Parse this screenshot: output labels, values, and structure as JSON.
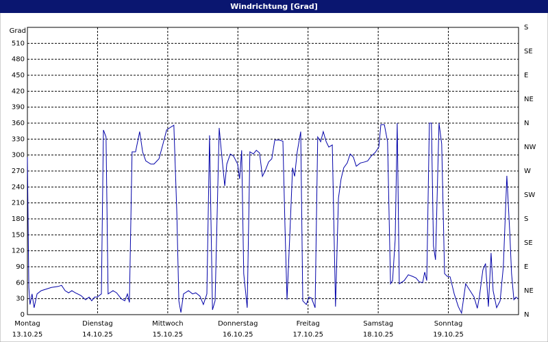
{
  "chart_data": {
    "type": "line",
    "title": "Windrichtung [Grad]",
    "y_label": "Grad",
    "color": "#0000a8",
    "grid": true,
    "xlim": [
      0,
      168
    ],
    "xticks": [
      {
        "value": 0,
        "label": "Montag",
        "date": "13.10.25"
      },
      {
        "value": 24,
        "label": "Dienstag",
        "date": "14.10.25"
      },
      {
        "value": 48,
        "label": "Mittwoch",
        "date": "15.10.25"
      },
      {
        "value": 72,
        "label": "Donnerstag",
        "date": "16.10.25"
      },
      {
        "value": 96,
        "label": "Freitag",
        "date": "17.10.25"
      },
      {
        "value": 120,
        "label": "Samstag",
        "date": "18.10.25"
      },
      {
        "value": 144,
        "label": "Sonntag",
        "date": "19.10.25"
      }
    ],
    "ylim": [
      0,
      540
    ],
    "yticks": [
      0,
      30,
      60,
      90,
      120,
      150,
      180,
      210,
      240,
      270,
      300,
      330,
      360,
      390,
      420,
      450,
      480,
      510
    ],
    "y2lim": [
      0,
      540
    ],
    "y2ticks": [
      {
        "value": 0,
        "label": "N"
      },
      {
        "value": 45,
        "label": "NE"
      },
      {
        "value": 90,
        "label": "E"
      },
      {
        "value": 135,
        "label": "SE"
      },
      {
        "value": 180,
        "label": "S"
      },
      {
        "value": 225,
        "label": "SW"
      },
      {
        "value": 270,
        "label": "W"
      },
      {
        "value": 315,
        "label": "NW"
      },
      {
        "value": 360,
        "label": "N"
      },
      {
        "value": 405,
        "label": "NE"
      },
      {
        "value": 450,
        "label": "E"
      },
      {
        "value": 495,
        "label": "SE"
      },
      {
        "value": 540,
        "label": "S"
      }
    ],
    "x": [
      0,
      0.5,
      0.9,
      1.6,
      2.3,
      3.3,
      4.7,
      7.0,
      8.2,
      10.5,
      11.7,
      12.9,
      14.1,
      15.2,
      16.4,
      18.3,
      19.9,
      21.1,
      22.0,
      23.0,
      23.9,
      24.6,
      25.3,
      26.0,
      26.9,
      27.6,
      29.3,
      30.5,
      32.1,
      33.3,
      34.2,
      34.9,
      35.8,
      37.0,
      38.4,
      39.4,
      40.5,
      42.2,
      43.3,
      45.0,
      46.4,
      47.6,
      49.2,
      50.1,
      51.1,
      51.8,
      52.5,
      53.4,
      55.1,
      56.5,
      57.6,
      59.0,
      60.2,
      61.4,
      62.3,
      63.3,
      64.2,
      65.6,
      66.3,
      67.5,
      68.2,
      69.4,
      70.5,
      71.9,
      72.6,
      73.3,
      74.0,
      75.2,
      76.1,
      77.3,
      78.3,
      79.4,
      80.4,
      81.3,
      82.5,
      83.6,
      84.6,
      86.2,
      87.4,
      88.1,
      88.8,
      89.7,
      90.7,
      91.4,
      92.3,
      93.5,
      94.2,
      95.4,
      96.3,
      97.2,
      98.4,
      99.3,
      100.3,
      101.2,
      102.2,
      103.1,
      104.3,
      105.4,
      106.4,
      107.3,
      108.2,
      109.4,
      110.4,
      111.5,
      112.5,
      113.9,
      115.3,
      116.4,
      117.6,
      119.0,
      120.2,
      120.9,
      122.1,
      123.2,
      124.2,
      124.9,
      125.8,
      126.5,
      127.2,
      128.9,
      130.3,
      131.7,
      132.9,
      134.0,
      135.2,
      135.9,
      136.6,
      137.5,
      138.2,
      138.9,
      139.6,
      140.8,
      141.7,
      142.7,
      143.6,
      144.6,
      146.0,
      147.4,
      148.5,
      149.9,
      151.4,
      152.8,
      153.9,
      154.6,
      155.8,
      156.7,
      157.7,
      158.6,
      159.3,
      160.5,
      161.7,
      162.8,
      164.0,
      165.0,
      165.6,
      166.4,
      167.1,
      167.8
    ],
    "values": [
      296,
      51,
      19,
      39,
      13,
      39,
      45,
      49,
      51,
      53,
      55,
      45,
      41,
      45,
      41,
      36,
      28,
      33,
      26,
      33,
      33,
      36,
      39,
      347,
      334,
      39,
      45,
      41,
      30,
      26,
      39,
      23,
      306,
      306,
      344,
      306,
      289,
      283,
      283,
      293,
      321,
      347,
      353,
      356,
      193,
      26,
      4,
      39,
      45,
      39,
      41,
      35,
      19,
      39,
      337,
      9,
      26,
      351,
      309,
      242,
      283,
      302,
      298,
      283,
      255,
      309,
      77,
      13,
      306,
      302,
      309,
      304,
      260,
      270,
      287,
      293,
      328,
      328,
      326,
      167,
      28,
      141,
      276,
      260,
      306,
      344,
      26,
      19,
      33,
      31,
      13,
      334,
      325,
      344,
      325,
      315,
      319,
      15,
      219,
      255,
      276,
      285,
      302,
      296,
      279,
      285,
      287,
      289,
      298,
      305,
      315,
      357,
      357,
      325,
      58,
      64,
      141,
      360,
      58,
      64,
      75,
      72,
      69,
      62,
      60,
      80,
      64,
      360,
      360,
      129,
      103,
      360,
      321,
      77,
      72,
      71,
      39,
      15,
      3,
      58,
      45,
      33,
      12,
      33,
      84,
      96,
      15,
      116,
      45,
      13,
      26,
      90,
      261,
      154,
      77,
      28,
      33,
      30
    ]
  }
}
